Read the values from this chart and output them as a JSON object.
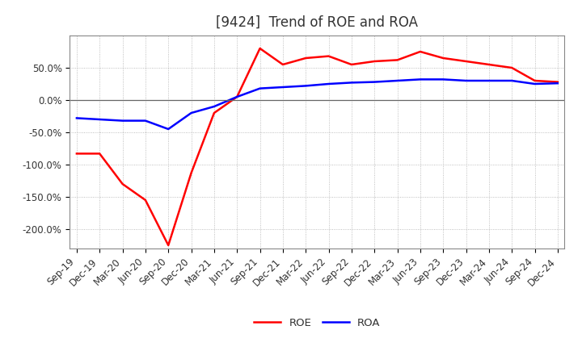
{
  "title": "[9424]  Trend of ROE and ROA",
  "x_labels": [
    "Sep-19",
    "Dec-19",
    "Mar-20",
    "Jun-20",
    "Sep-20",
    "Dec-20",
    "Mar-21",
    "Jun-21",
    "Sep-21",
    "Dec-21",
    "Mar-22",
    "Jun-22",
    "Sep-22",
    "Dec-22",
    "Mar-23",
    "Jun-23",
    "Sep-23",
    "Dec-23",
    "Mar-24",
    "Jun-24",
    "Sep-24",
    "Dec-24"
  ],
  "roe": [
    -83,
    -83,
    -130,
    -155,
    -225,
    -113,
    -20,
    5,
    80,
    55,
    65,
    68,
    55,
    60,
    62,
    75,
    65,
    60,
    55,
    50,
    30,
    28
  ],
  "roa": [
    -28,
    -30,
    -32,
    -32,
    -45,
    -20,
    -10,
    5,
    18,
    20,
    22,
    25,
    27,
    28,
    30,
    32,
    32,
    30,
    30,
    30,
    25,
    26
  ],
  "roe_color": "#FF0000",
  "roa_color": "#0000FF",
  "ylim": [
    -230,
    100
  ],
  "yticks": [
    -200,
    -150,
    -100,
    -50,
    0,
    50
  ],
  "ytick_labels": [
    "-200.0%",
    "-150.0%",
    "-100.0%",
    "-50.0%",
    "0.0%",
    "50.0%"
  ],
  "bg_color": "#FFFFFF",
  "plot_bg_color": "#FFFFFF",
  "grid_color": "#999999",
  "legend_roe": "ROE",
  "legend_roa": "ROA",
  "title_fontsize": 12,
  "axis_fontsize": 8.5,
  "legend_fontsize": 9.5
}
